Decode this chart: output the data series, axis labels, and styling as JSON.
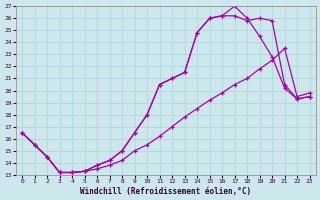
{
  "xlabel": "Windchill (Refroidissement éolien,°C)",
  "xlim": [
    -0.5,
    23.5
  ],
  "ylim": [
    13,
    27
  ],
  "xticks": [
    0,
    1,
    2,
    3,
    4,
    5,
    6,
    7,
    8,
    9,
    10,
    11,
    12,
    13,
    14,
    15,
    16,
    17,
    18,
    19,
    20,
    21,
    22,
    23
  ],
  "yticks": [
    13,
    14,
    15,
    16,
    17,
    18,
    19,
    20,
    21,
    22,
    23,
    24,
    25,
    26,
    27
  ],
  "bg_color": "#cde8ec",
  "line_color": "#aa00aa",
  "grid_color": "#b0d8de",
  "line1_x": [
    0,
    1,
    2,
    3,
    4,
    5,
    6,
    7,
    8,
    9,
    10,
    11,
    12,
    13,
    14,
    15,
    16,
    17,
    18,
    19,
    20,
    21,
    22,
    23
  ],
  "line1_y": [
    16.5,
    15.5,
    14.5,
    13.2,
    13.2,
    13.3,
    13.8,
    14.2,
    15.0,
    16.5,
    18.0,
    20.5,
    21.0,
    21.5,
    24.8,
    26.0,
    26.2,
    27.0,
    26.0,
    24.5,
    22.8,
    20.2,
    19.3,
    19.5
  ],
  "line2_x": [
    0,
    1,
    2,
    3,
    4,
    5,
    6,
    7,
    8,
    9,
    10,
    11,
    12,
    13,
    14,
    15,
    16,
    17,
    18,
    19,
    20,
    21,
    22,
    23
  ],
  "line2_y": [
    16.5,
    15.5,
    14.5,
    13.2,
    13.2,
    13.3,
    13.8,
    14.2,
    15.0,
    16.5,
    18.0,
    20.5,
    21.0,
    21.5,
    24.8,
    26.0,
    26.2,
    26.2,
    25.8,
    26.0,
    25.8,
    20.5,
    19.3,
    19.5
  ],
  "line3_x": [
    0,
    1,
    2,
    3,
    4,
    5,
    6,
    7,
    8,
    9,
    10,
    11,
    12,
    13,
    14,
    15,
    16,
    17,
    18,
    19,
    20,
    21,
    22,
    23
  ],
  "line3_y": [
    16.5,
    15.5,
    14.5,
    13.2,
    13.2,
    13.3,
    13.5,
    13.8,
    14.2,
    15.0,
    15.5,
    16.2,
    17.0,
    17.8,
    18.5,
    19.2,
    19.8,
    20.5,
    21.0,
    21.8,
    22.5,
    23.5,
    19.5,
    19.8
  ]
}
